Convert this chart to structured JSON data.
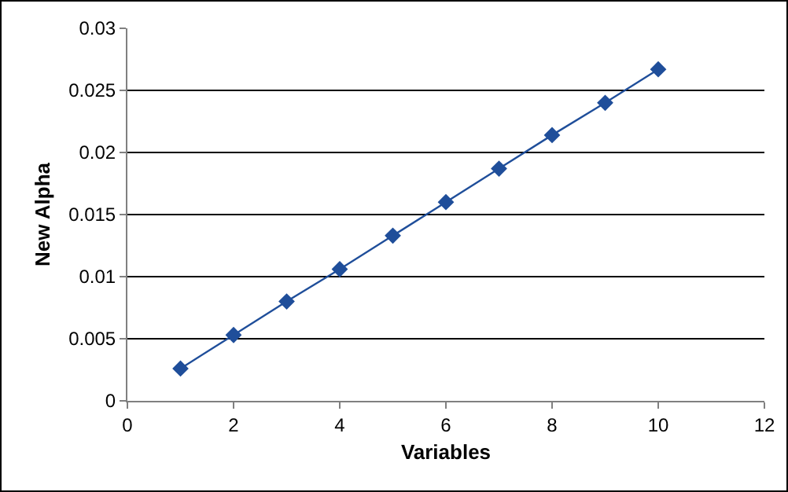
{
  "chart_data": {
    "type": "line",
    "xlabel": "Variables",
    "ylabel": "New Alpha",
    "x": [
      1,
      2,
      3,
      4,
      5,
      6,
      7,
      8,
      9,
      10
    ],
    "series": [
      {
        "color": "#1f4e9a",
        "values": [
          0.0026,
          0.0053,
          0.008,
          0.0106,
          0.0133,
          0.016,
          0.0187,
          0.0214,
          0.024,
          0.0267
        ]
      }
    ],
    "xlim": [
      0,
      12
    ],
    "xticks": [
      0,
      2,
      4,
      6,
      8,
      10,
      12
    ],
    "ylim": [
      0,
      0.03
    ],
    "yticks": [
      0,
      0.005,
      0.01,
      0.015,
      0.02,
      0.025,
      0.03
    ],
    "grid": "y",
    "marker": "diamond",
    "line_style": "solid"
  }
}
